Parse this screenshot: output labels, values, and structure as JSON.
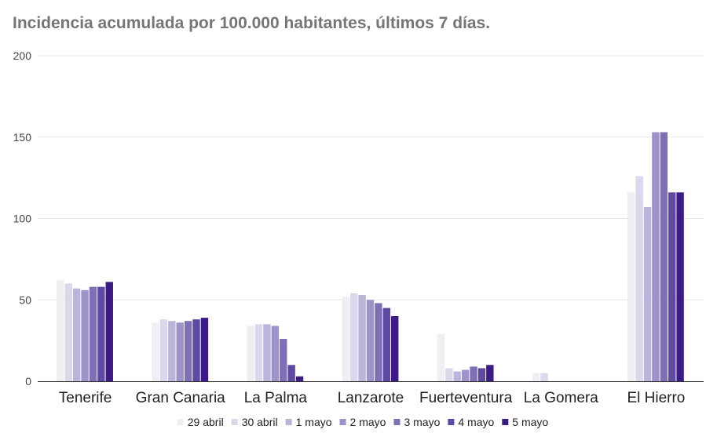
{
  "chart_data": {
    "type": "bar",
    "title": "Incidencia acumulada por 100.000 habitantes, últimos 7 días.",
    "xlabel": "",
    "ylabel": "",
    "ylim": [
      0,
      200
    ],
    "yticks": [
      0,
      50,
      100,
      150,
      200
    ],
    "grid": true,
    "legend_position": "bottom",
    "categories": [
      "Tenerife",
      "Gran Canaria",
      "La Palma",
      "Lanzarote",
      "Fuerteventura",
      "La Gomera",
      "El Hierro"
    ],
    "series": [
      {
        "name": "29 abril",
        "color": "#efeff3",
        "values": [
          62,
          36,
          34,
          52,
          29,
          5,
          116
        ]
      },
      {
        "name": "30 abril",
        "color": "#dad8ea",
        "values": [
          60,
          38,
          35,
          54,
          8,
          5,
          126
        ]
      },
      {
        "name": "1 mayo",
        "color": "#bcb5da",
        "values": [
          57,
          37,
          35,
          53,
          6,
          0,
          107
        ]
      },
      {
        "name": "2 mayo",
        "color": "#9d93c8",
        "values": [
          56,
          36,
          34,
          50,
          7,
          0,
          153
        ]
      },
      {
        "name": "3 mayo",
        "color": "#7e6fb6",
        "values": [
          58,
          37,
          26,
          48,
          9,
          0,
          153
        ]
      },
      {
        "name": "4 mayo",
        "color": "#5f4aa3",
        "values": [
          58,
          38,
          10,
          45,
          8,
          0,
          116
        ]
      },
      {
        "name": "5 mayo",
        "color": "#3d1b86",
        "values": [
          61,
          39,
          3,
          40,
          10,
          0,
          116
        ]
      }
    ]
  }
}
